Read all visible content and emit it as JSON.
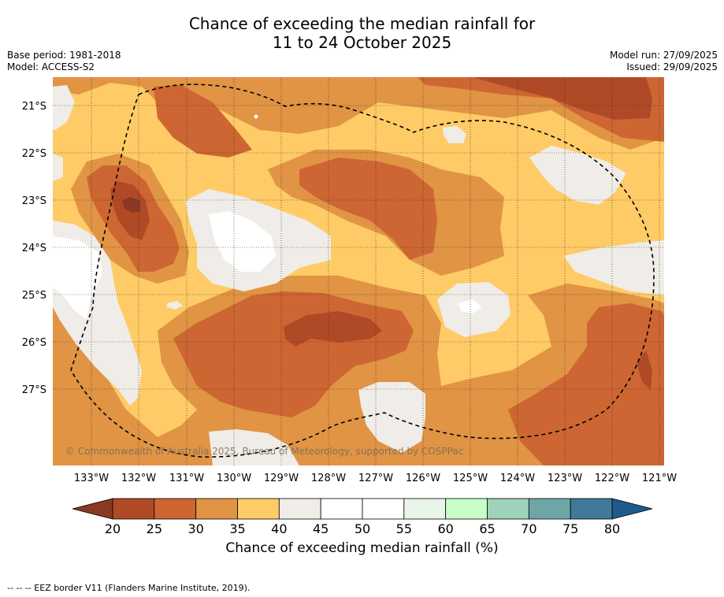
{
  "title": {
    "line1": "Chance of exceeding the median rainfall for",
    "line2": "11 to 24 October 2025"
  },
  "meta": {
    "base_period": "Base period: 1981-2018",
    "model": "Model: ACCESS-S2",
    "model_run": "Model run: 27/09/2025",
    "issued": "Issued: 29/09/2025"
  },
  "map": {
    "lat_labels": [
      "21°S",
      "22°S",
      "23°S",
      "24°S",
      "25°S",
      "26°S",
      "27°S"
    ],
    "lon_labels": [
      "133°W",
      "132°W",
      "131°W",
      "130°W",
      "129°W",
      "128°W",
      "127°W",
      "126°W",
      "125°W",
      "124°W",
      "123°W",
      "122°W",
      "121°W"
    ],
    "copyright": "© Commonwealth of Australia 2025, Bureau of Meteorology, supported by COSPPac"
  },
  "colorbar": {
    "ticks": [
      "20",
      "25",
      "30",
      "35",
      "40",
      "45",
      "50",
      "55",
      "60",
      "65",
      "70",
      "75",
      "80"
    ],
    "label": "Chance of exceeding median rainfall (%)",
    "under_color": "#8a3a22",
    "over_color": "#1f5a8c",
    "colors": [
      "#b04a26",
      "#cd6632",
      "#e09444",
      "#fecb66",
      "#f0ece7",
      "#ffffff",
      "#ffffff",
      "#e8f5e8",
      "#c8ffc8",
      "#9fd2bb",
      "#6ea6a6",
      "#3f7a98"
    ]
  },
  "footnote": "--  --  -- EEZ border V11 (Flanders Marine Institute, 2019)."
}
